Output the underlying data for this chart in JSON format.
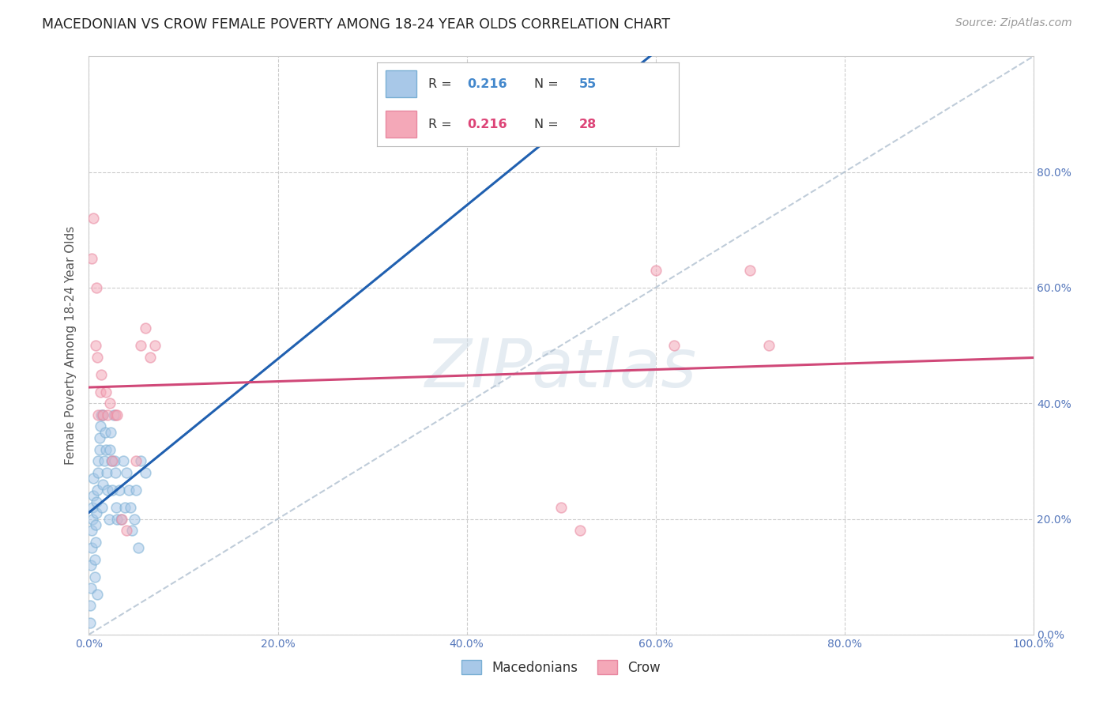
{
  "title": "MACEDONIAN VS CROW FEMALE POVERTY AMONG 18-24 YEAR OLDS CORRELATION CHART",
  "source": "Source: ZipAtlas.com",
  "ylabel": "Female Poverty Among 18-24 Year Olds",
  "xlim": [
    0,
    1.0
  ],
  "ylim": [
    0,
    1.0
  ],
  "xticks": [
    0.0,
    0.2,
    0.4,
    0.6,
    0.8,
    1.0
  ],
  "yticks": [
    0.0,
    0.2,
    0.4,
    0.6,
    0.8
  ],
  "xticklabels": [
    "0.0%",
    "20.0%",
    "40.0%",
    "60.0%",
    "80.0%",
    "100.0%"
  ],
  "yticklabels": [
    "0.0%",
    "20.0%",
    "40.0%",
    "60.0%",
    "80.0%"
  ],
  "macedonian_color": "#a8c8e8",
  "macedonian_edge": "#7aafd4",
  "crow_color": "#f4a8b8",
  "crow_edge": "#e888a0",
  "trend_macedonian_color": "#2060b0",
  "trend_crow_color": "#d04878",
  "diagonal_color": "#b0c0d0",
  "background_color": "#ffffff",
  "grid_color": "#cccccc",
  "legend_r_mac": "0.216",
  "legend_n_mac": "55",
  "legend_r_crow": "0.216",
  "legend_n_crow": "28",
  "macedonian_x": [
    0.001,
    0.001,
    0.002,
    0.002,
    0.003,
    0.003,
    0.004,
    0.004,
    0.005,
    0.005,
    0.006,
    0.006,
    0.007,
    0.007,
    0.008,
    0.008,
    0.009,
    0.009,
    0.01,
    0.01,
    0.011,
    0.011,
    0.012,
    0.013,
    0.014,
    0.015,
    0.015,
    0.016,
    0.017,
    0.018,
    0.019,
    0.02,
    0.021,
    0.022,
    0.023,
    0.024,
    0.025,
    0.026,
    0.027,
    0.028,
    0.029,
    0.03,
    0.032,
    0.034,
    0.036,
    0.038,
    0.04,
    0.042,
    0.044,
    0.046,
    0.048,
    0.05,
    0.052,
    0.055,
    0.06
  ],
  "macedonian_y": [
    0.02,
    0.05,
    0.08,
    0.12,
    0.15,
    0.18,
    0.2,
    0.22,
    0.24,
    0.27,
    0.1,
    0.13,
    0.16,
    0.19,
    0.21,
    0.23,
    0.25,
    0.07,
    0.28,
    0.3,
    0.32,
    0.34,
    0.36,
    0.38,
    0.22,
    0.26,
    0.38,
    0.3,
    0.35,
    0.32,
    0.28,
    0.25,
    0.2,
    0.32,
    0.35,
    0.3,
    0.25,
    0.38,
    0.3,
    0.28,
    0.22,
    0.2,
    0.25,
    0.2,
    0.3,
    0.22,
    0.28,
    0.25,
    0.22,
    0.18,
    0.2,
    0.25,
    0.15,
    0.3,
    0.28
  ],
  "crow_x": [
    0.003,
    0.005,
    0.007,
    0.008,
    0.009,
    0.01,
    0.012,
    0.013,
    0.015,
    0.018,
    0.02,
    0.022,
    0.025,
    0.028,
    0.03,
    0.035,
    0.04,
    0.05,
    0.055,
    0.06,
    0.065,
    0.07,
    0.5,
    0.52,
    0.6,
    0.62,
    0.7,
    0.72
  ],
  "crow_y": [
    0.65,
    0.72,
    0.5,
    0.6,
    0.48,
    0.38,
    0.42,
    0.45,
    0.38,
    0.42,
    0.38,
    0.4,
    0.3,
    0.38,
    0.38,
    0.2,
    0.18,
    0.3,
    0.5,
    0.53,
    0.48,
    0.5,
    0.22,
    0.18,
    0.63,
    0.5,
    0.63,
    0.5
  ],
  "watermark_text": "ZIPatlas",
  "marker_size": 85,
  "marker_alpha": 0.55
}
